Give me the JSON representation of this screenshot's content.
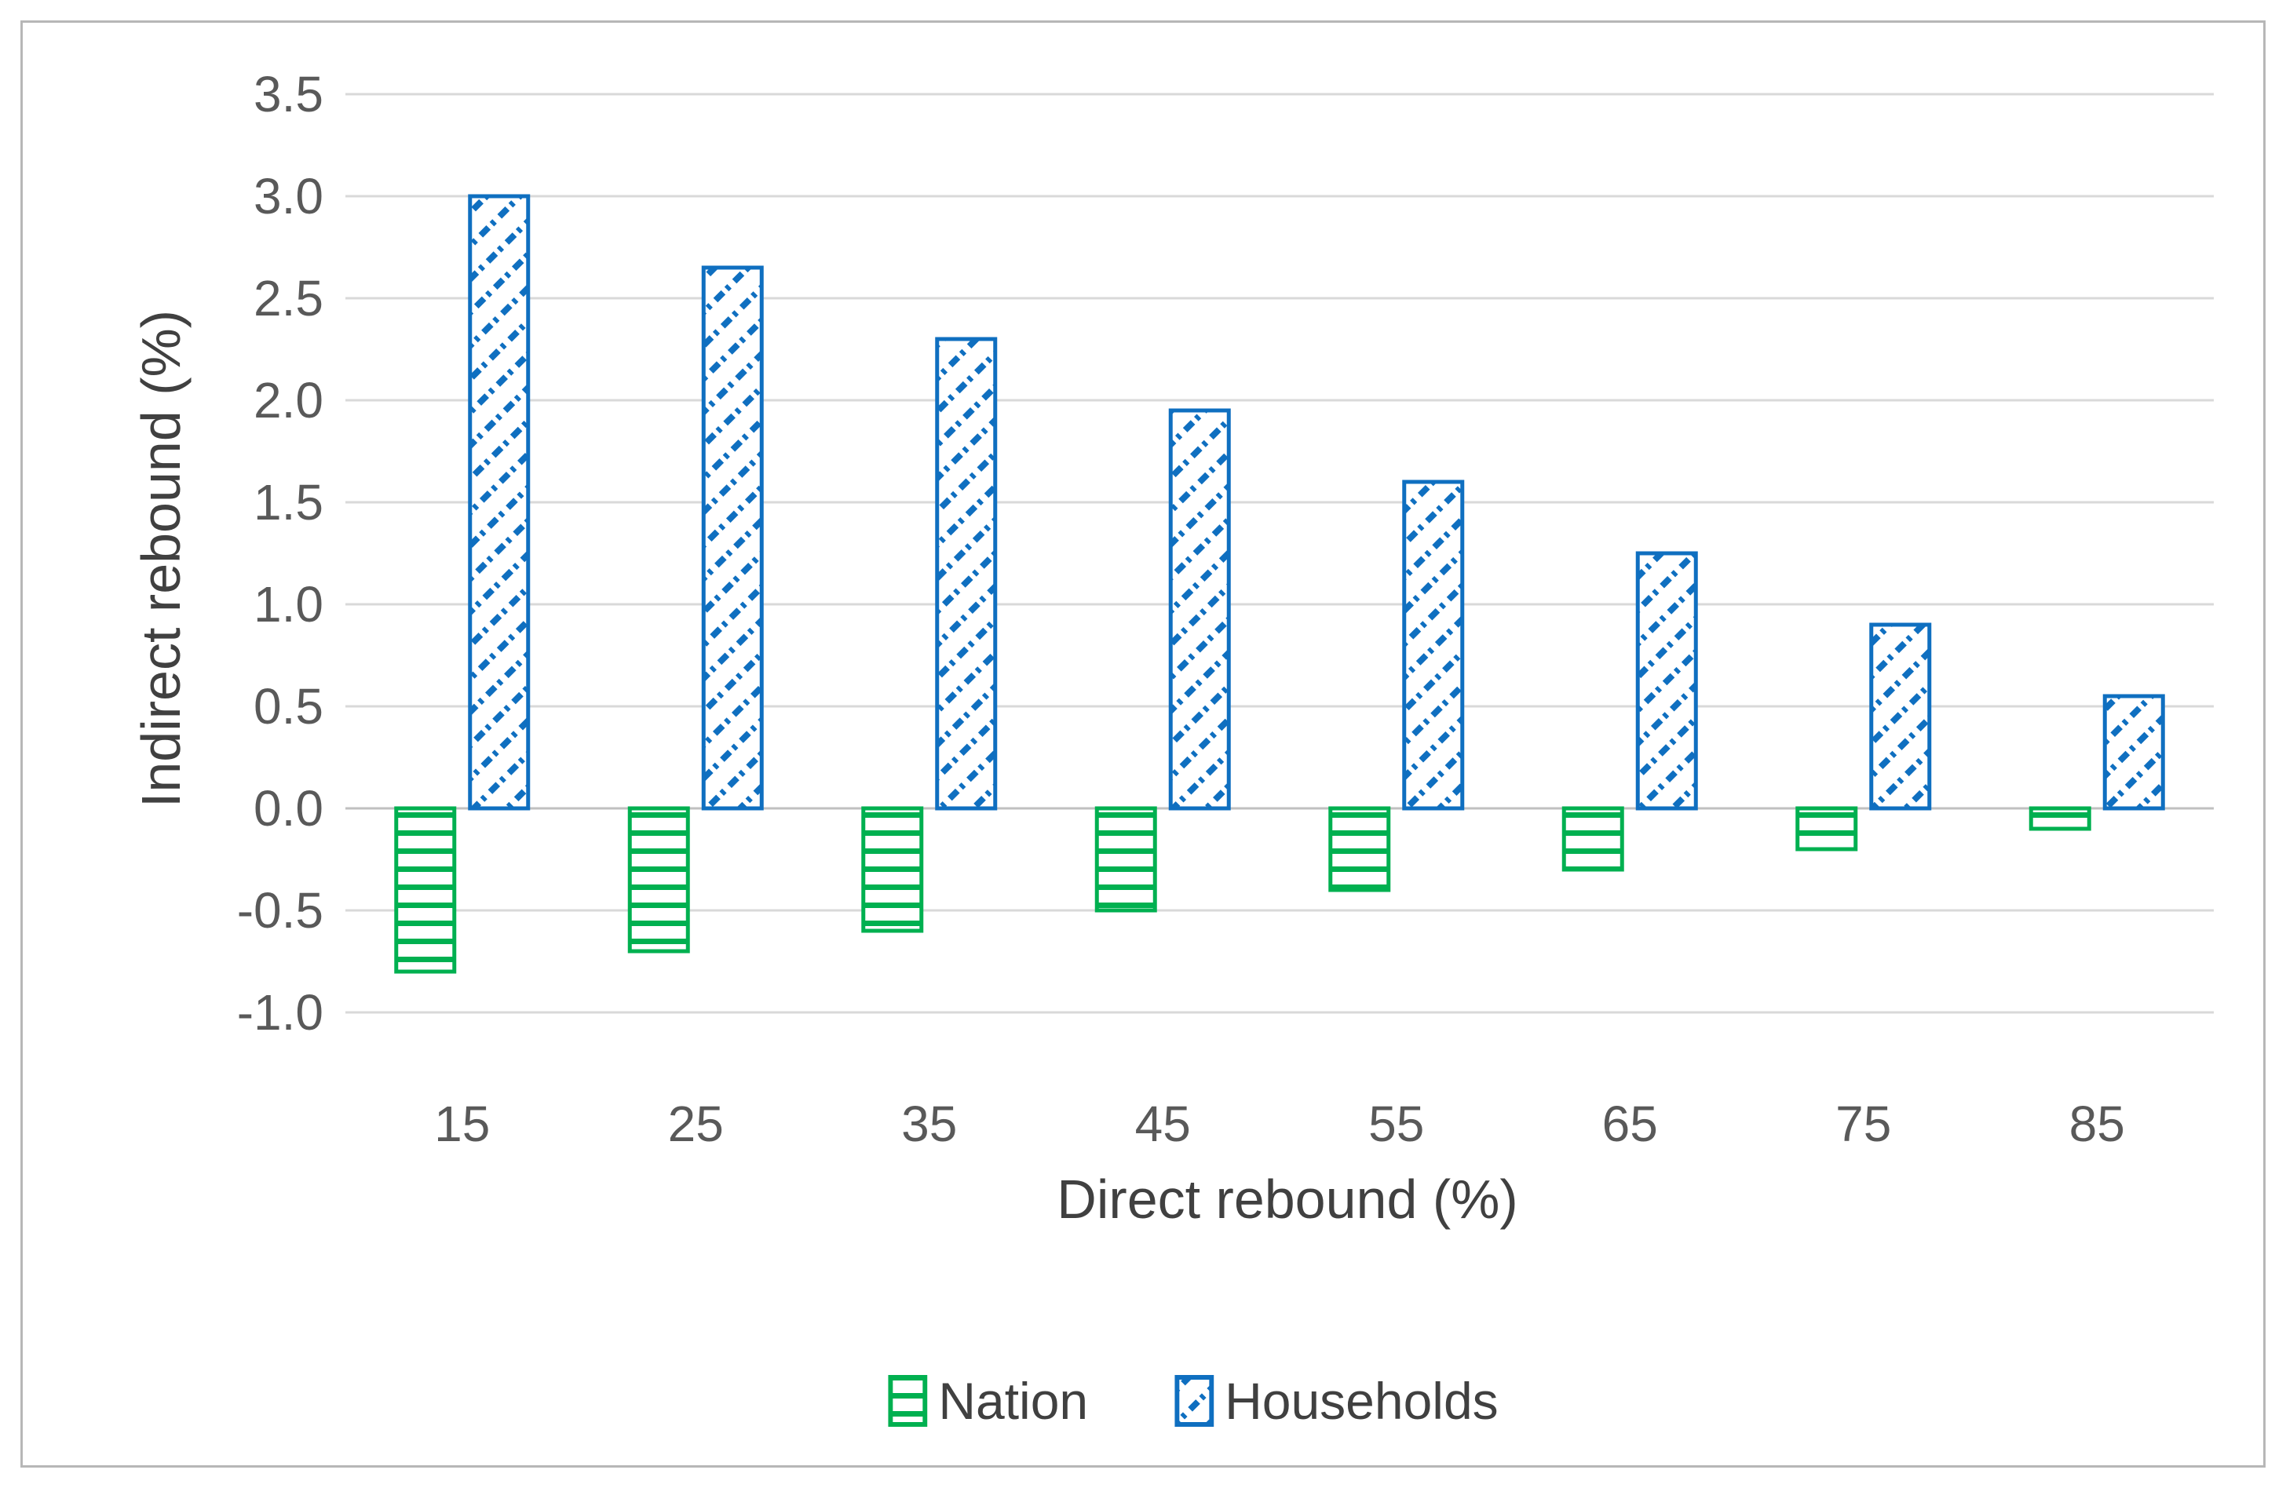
{
  "figure": {
    "background": "#ffffff",
    "border_color": "#b7b7b7"
  },
  "chart_data": {
    "type": "bar",
    "title": "",
    "xlabel": "Direct rebound (%)",
    "ylabel": "Indirect rebound (%)",
    "categories": [
      "15",
      "25",
      "35",
      "45",
      "55",
      "65",
      "75",
      "85"
    ],
    "series": [
      {
        "name": "Nation",
        "color": "#00b050",
        "pattern": "horizontal-stripes",
        "values": [
          -0.8,
          -0.7,
          -0.6,
          -0.5,
          -0.4,
          -0.3,
          -0.2,
          -0.1
        ]
      },
      {
        "name": "Households",
        "color": "#0f6fc0",
        "pattern": "diagonal-dashes",
        "values": [
          3.0,
          2.65,
          2.3,
          1.95,
          1.6,
          1.25,
          0.9,
          0.55
        ]
      }
    ],
    "ylim": [
      -1.0,
      3.5
    ],
    "ytick_step": 0.5,
    "ytick_labels": [
      "3.5",
      "3.0",
      "2.5",
      "2.0",
      "1.5",
      "1.0",
      "0.5",
      "0.0",
      "-0.5",
      "-1.0"
    ],
    "grid": "horizontal",
    "gridline_color": "#d9d9d9",
    "zero_line_color": "#c0c0c0",
    "tick_label_color": "#595959",
    "axis_title_color": "#404040",
    "legend_position": "bottom"
  }
}
